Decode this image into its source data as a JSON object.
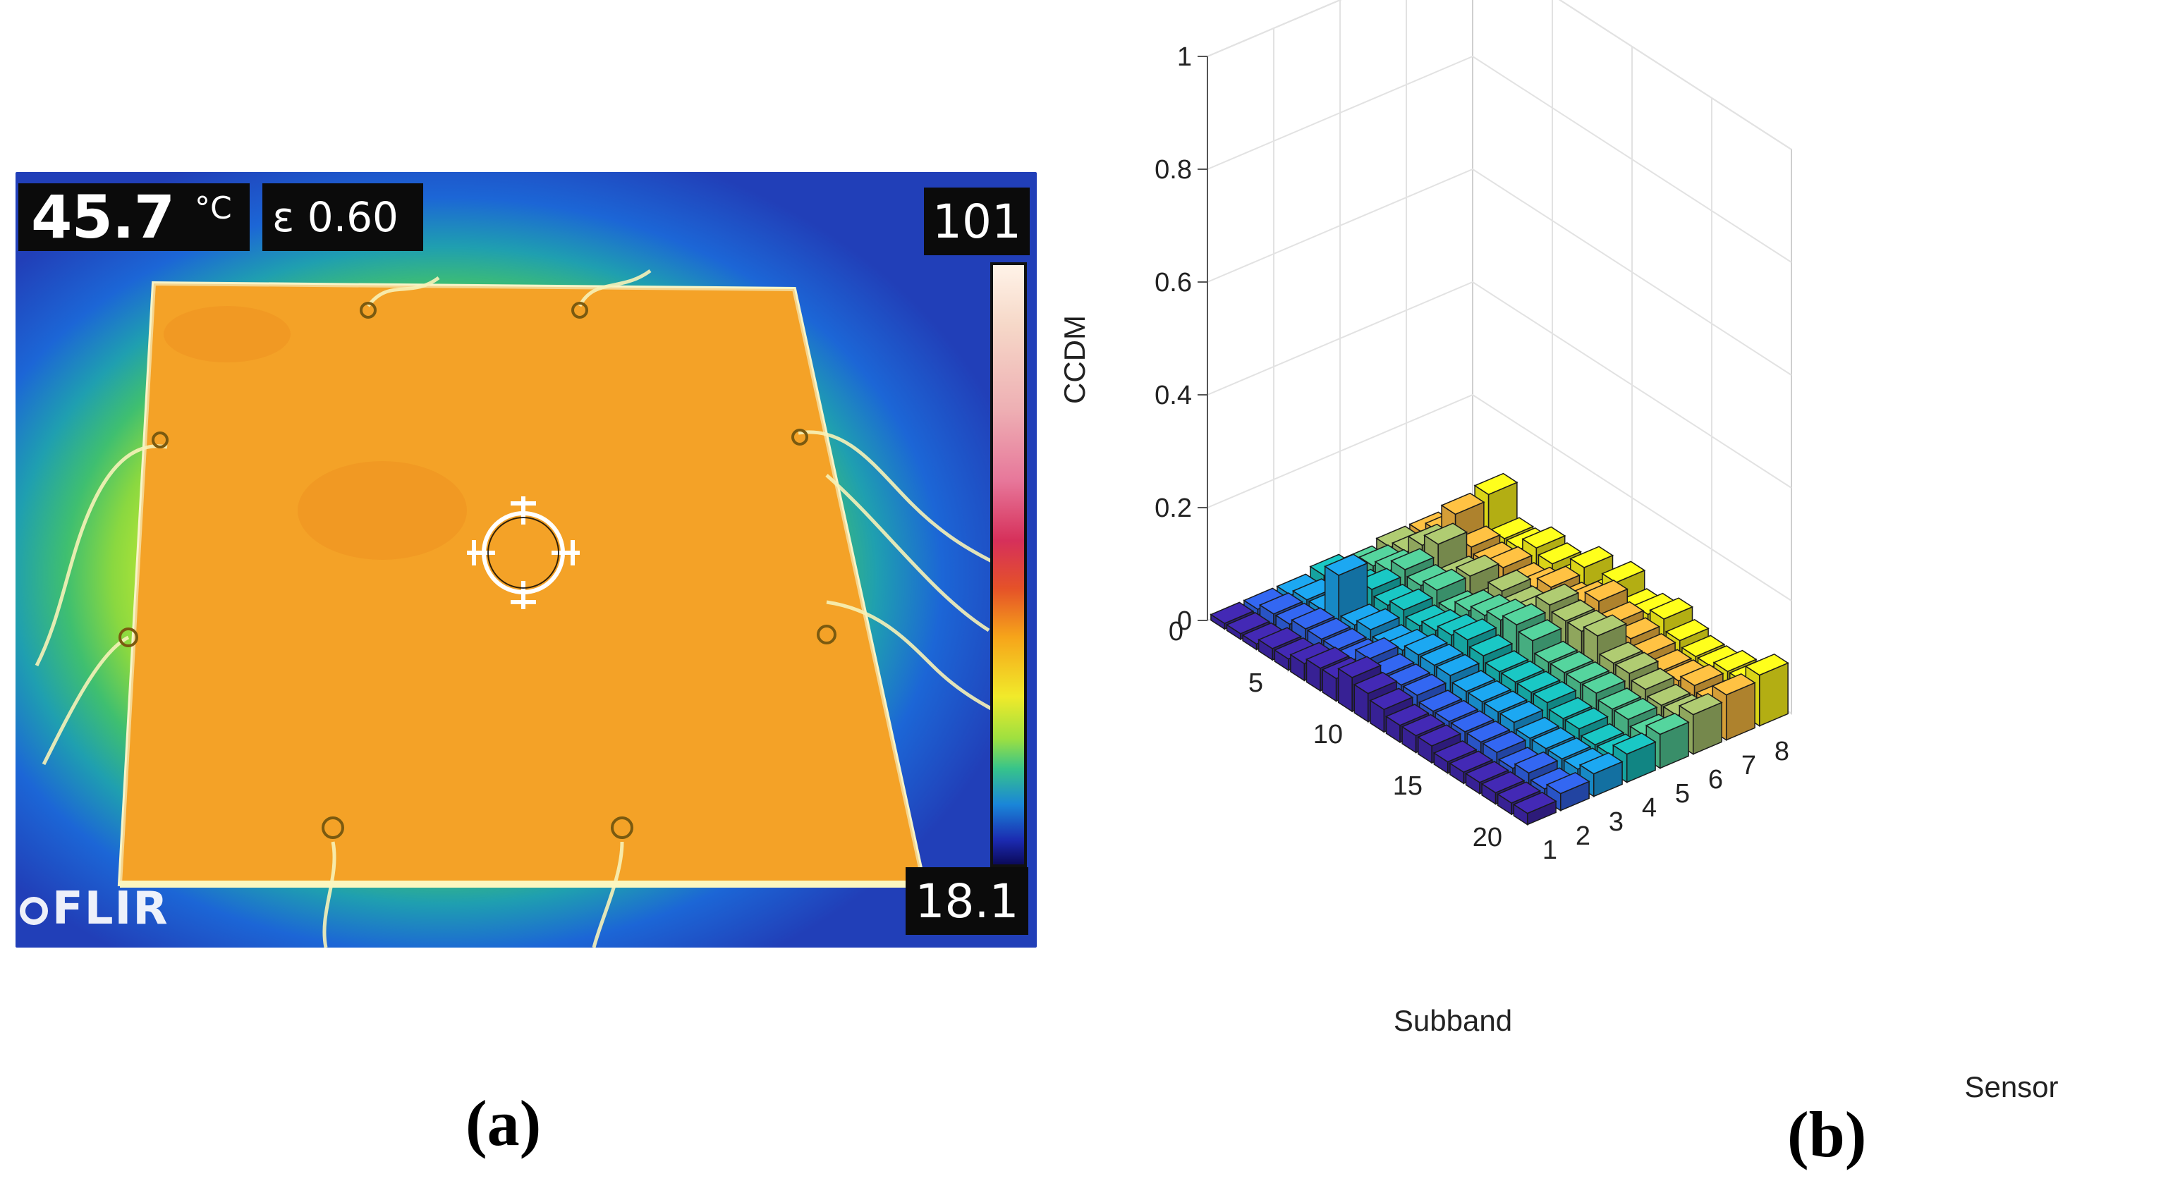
{
  "panel_a": {
    "caption": "(a)",
    "temperature_value": "45.7",
    "temperature_unit": "°C",
    "emissivity": "ε 0.60",
    "scale_max": "101",
    "scale_min": "18.1",
    "logo": "FLIR",
    "icons": [
      "crosshair-icon",
      "flir-logo-icon"
    ]
  },
  "panel_b": {
    "caption": "(b)"
  },
  "chart_data": {
    "type": "bar3d",
    "title": "",
    "zlabel": "CCDM",
    "xlabel": "Subband",
    "ylabel": "Sensor",
    "zlim": [
      0,
      1
    ],
    "z_ticks": [
      "0",
      "0.2",
      "0.4",
      "0.6",
      "0.8",
      "1"
    ],
    "subband_ticks": [
      "0",
      "5",
      "10",
      "15",
      "20"
    ],
    "sensor_ticks": [
      "1",
      "2",
      "3",
      "4",
      "5",
      "6",
      "7",
      "8"
    ],
    "grid": true,
    "colormap": [
      "#3e26a8",
      "#2f5fe0",
      "#1a9ce0",
      "#18b9b6",
      "#4fc592",
      "#a3bd6a",
      "#f2b43e",
      "#f9f21a"
    ],
    "subbands": [
      1,
      2,
      3,
      4,
      5,
      6,
      7,
      8,
      9,
      10,
      11,
      12,
      13,
      14,
      15,
      16,
      17,
      18,
      19,
      20
    ],
    "sensors": [
      1,
      2,
      3,
      4,
      5,
      6,
      7,
      8
    ],
    "values": [
      [
        0.01,
        0.01,
        0.01,
        0.02,
        0.01,
        0.02,
        0.02,
        0.02
      ],
      [
        0.01,
        0.02,
        0.02,
        0.02,
        0.03,
        0.03,
        0.04,
        0.05
      ],
      [
        0.01,
        0.02,
        0.02,
        0.03,
        0.04,
        0.06,
        0.09,
        0.1
      ],
      [
        0.02,
        0.03,
        0.1,
        0.05,
        0.06,
        0.08,
        0.05,
        0.04
      ],
      [
        0.02,
        0.03,
        0.03,
        0.04,
        0.05,
        0.04,
        0.04,
        0.04
      ],
      [
        0.03,
        0.03,
        0.04,
        0.05,
        0.06,
        0.06,
        0.05,
        0.06
      ],
      [
        0.04,
        0.03,
        0.03,
        0.04,
        0.04,
        0.03,
        0.04,
        0.05
      ],
      [
        0.04,
        0.05,
        0.04,
        0.05,
        0.06,
        0.07,
        0.05,
        0.04
      ],
      [
        0.06,
        0.04,
        0.05,
        0.06,
        0.07,
        0.06,
        0.07,
        0.08
      ],
      [
        0.05,
        0.04,
        0.05,
        0.07,
        0.08,
        0.07,
        0.06,
        0.05
      ],
      [
        0.04,
        0.04,
        0.05,
        0.06,
        0.09,
        0.1,
        0.08,
        0.09
      ],
      [
        0.03,
        0.03,
        0.04,
        0.05,
        0.08,
        0.09,
        0.1,
        0.06
      ],
      [
        0.03,
        0.03,
        0.04,
        0.05,
        0.06,
        0.09,
        0.08,
        0.07
      ],
      [
        0.03,
        0.03,
        0.04,
        0.05,
        0.06,
        0.1,
        0.07,
        0.08
      ],
      [
        0.02,
        0.03,
        0.04,
        0.05,
        0.06,
        0.07,
        0.06,
        0.06
      ],
      [
        0.02,
        0.03,
        0.03,
        0.04,
        0.06,
        0.07,
        0.05,
        0.05
      ],
      [
        0.02,
        0.02,
        0.03,
        0.04,
        0.05,
        0.06,
        0.05,
        0.05
      ],
      [
        0.02,
        0.03,
        0.03,
        0.03,
        0.05,
        0.05,
        0.06,
        0.06
      ],
      [
        0.02,
        0.02,
        0.03,
        0.03,
        0.04,
        0.05,
        0.05,
        0.06
      ],
      [
        0.02,
        0.03,
        0.04,
        0.05,
        0.06,
        0.07,
        0.08,
        0.09
      ]
    ]
  }
}
